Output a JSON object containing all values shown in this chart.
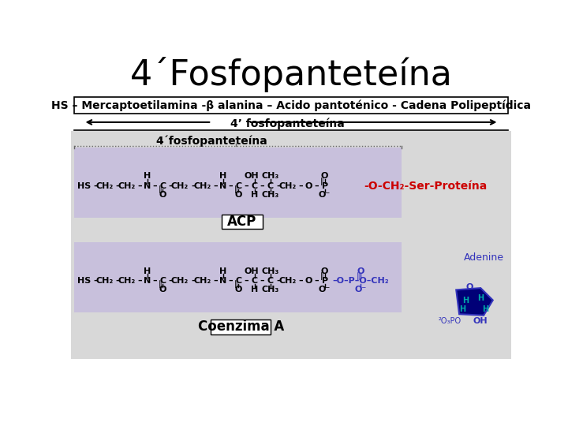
{
  "title": "4´Fosfopanteteína",
  "subtitle_box": "HS – Mercaptoetilamina -β alanina – Acido pantoténico - Cadena Polipeptídica",
  "arrow_label": "4’ fosfopanteteína",
  "bracket_label_acp": "4´fosfopanteteína",
  "acp_label": "ACP",
  "coenzima_label": "Coenzima A",
  "o_ch2_label": "-O-CH₂-Ser-Proteína",
  "adenine_label": "Adenine",
  "bg_color": "#c8c0dc",
  "outer_bg": "#d8d8d8",
  "title_fontsize": 32,
  "text_color_red": "#cc0000",
  "text_color_blue": "#3333bb",
  "text_color_cyan": "#00aaaa",
  "text_color_dark_blue": "#000066"
}
